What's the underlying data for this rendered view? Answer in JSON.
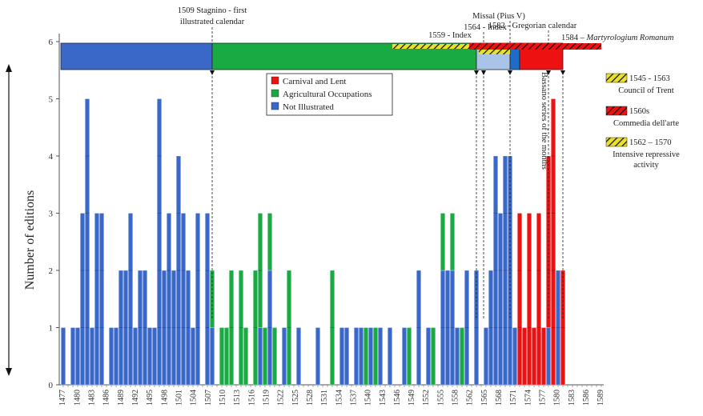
{
  "chart_data": {
    "type": "bar",
    "ylabel": "Number of editions",
    "ylim": [
      0,
      6
    ],
    "yticks": [
      0,
      1,
      2,
      3,
      4,
      5,
      6
    ],
    "x_start": 1477,
    "x_end": 1589,
    "xtick_labels": [
      "1477",
      "1480",
      "1483",
      "1486",
      "1489",
      "1492",
      "1495",
      "1498",
      "1501",
      "1504",
      "1507",
      "1510",
      "1513",
      "1516",
      "1519",
      "1522",
      "1525",
      "1528",
      "1531",
      "1534",
      "1537",
      "1540",
      "1543",
      "1546",
      "1549",
      "1552",
      "1555",
      "1558",
      "1562",
      "1565",
      "1568",
      "1571",
      "1574",
      "1577",
      "1580",
      "1583",
      "1586",
      "1589"
    ],
    "legend": [
      {
        "label": "Carnival and Lent",
        "color": "#ee1111"
      },
      {
        "label": "Agricultural Occupations",
        "color": "#1aaa44"
      },
      {
        "label": "Not Illustrated",
        "color": "#3a68c8"
      }
    ],
    "colors": {
      "red": "#ee1111",
      "green": "#1aaa44",
      "blue": "#3a68c8",
      "lightblue": "#a9c4e8",
      "hatch_yellow": "#e8e02a",
      "hatch_black": "#111111"
    },
    "stacks": [
      {
        "year": 1477,
        "blue": 1
      },
      {
        "year": 1479,
        "blue": 1
      },
      {
        "year": 1480,
        "blue": 1
      },
      {
        "year": 1481,
        "blue": 3
      },
      {
        "year": 1482,
        "blue": 5
      },
      {
        "year": 1483,
        "blue": 1
      },
      {
        "year": 1484,
        "blue": 3
      },
      {
        "year": 1485,
        "blue": 3
      },
      {
        "year": 1487,
        "blue": 1
      },
      {
        "year": 1488,
        "blue": 1
      },
      {
        "year": 1489,
        "blue": 2
      },
      {
        "year": 1490,
        "blue": 2
      },
      {
        "year": 1491,
        "blue": 3
      },
      {
        "year": 1492,
        "blue": 1
      },
      {
        "year": 1493,
        "blue": 2
      },
      {
        "year": 1494,
        "blue": 2
      },
      {
        "year": 1495,
        "blue": 1
      },
      {
        "year": 1496,
        "blue": 1
      },
      {
        "year": 1497,
        "blue": 5
      },
      {
        "year": 1498,
        "blue": 2
      },
      {
        "year": 1499,
        "blue": 3
      },
      {
        "year": 1500,
        "blue": 2
      },
      {
        "year": 1501,
        "blue": 4
      },
      {
        "year": 1502,
        "blue": 3
      },
      {
        "year": 1503,
        "blue": 2
      },
      {
        "year": 1504,
        "blue": 1
      },
      {
        "year": 1505,
        "blue": 3
      },
      {
        "year": 1507,
        "blue": 3
      },
      {
        "year": 1508,
        "blue": 1,
        "green": 1
      },
      {
        "year": 1510,
        "green": 1
      },
      {
        "year": 1511,
        "green": 1
      },
      {
        "year": 1512,
        "green": 2
      },
      {
        "year": 1514,
        "green": 2
      },
      {
        "year": 1515,
        "green": 1
      },
      {
        "year": 1517,
        "green": 2
      },
      {
        "year": 1518,
        "blue": 1,
        "green": 2
      },
      {
        "year": 1519,
        "green": 1
      },
      {
        "year": 1520,
        "blue": 2,
        "green": 1
      },
      {
        "year": 1521,
        "green": 1
      },
      {
        "year": 1523,
        "blue": 1
      },
      {
        "year": 1524,
        "green": 2
      },
      {
        "year": 1526,
        "blue": 1
      },
      {
        "year": 1530,
        "blue": 1
      },
      {
        "year": 1533,
        "green": 2
      },
      {
        "year": 1535,
        "blue": 1
      },
      {
        "year": 1536,
        "blue": 1
      },
      {
        "year": 1538,
        "blue": 1
      },
      {
        "year": 1539,
        "blue": 1
      },
      {
        "year": 1540,
        "green": 1
      },
      {
        "year": 1541,
        "blue": 1
      },
      {
        "year": 1542,
        "green": 1
      },
      {
        "year": 1543,
        "blue": 1
      },
      {
        "year": 1545,
        "blue": 1
      },
      {
        "year": 1548,
        "blue": 1
      },
      {
        "year": 1549,
        "green": 1
      },
      {
        "year": 1551,
        "blue": 2
      },
      {
        "year": 1553,
        "blue": 1
      },
      {
        "year": 1554,
        "green": 1
      },
      {
        "year": 1556,
        "blue": 2,
        "green": 1
      },
      {
        "year": 1557,
        "blue": 2
      },
      {
        "year": 1558,
        "blue": 2,
        "green": 1
      },
      {
        "year": 1559,
        "blue": 1
      },
      {
        "year": 1560,
        "green": 1
      },
      {
        "year": 1561,
        "blue": 2
      },
      {
        "year": 1563,
        "blue": 2
      },
      {
        "year": 1565,
        "blue": 1
      },
      {
        "year": 1566,
        "blue": 2
      },
      {
        "year": 1567,
        "blue": 4
      },
      {
        "year": 1568,
        "blue": 3
      },
      {
        "year": 1569,
        "blue": 4
      },
      {
        "year": 1570,
        "blue": 4
      },
      {
        "year": 1571,
        "blue": 1
      },
      {
        "year": 1572,
        "red": 3
      },
      {
        "year": 1573,
        "red": 1
      },
      {
        "year": 1574,
        "red": 3
      },
      {
        "year": 1575,
        "red": 1
      },
      {
        "year": 1576,
        "red": 3
      },
      {
        "year": 1577,
        "red": 1
      },
      {
        "year": 1578,
        "blue": 1,
        "red": 3
      },
      {
        "year": 1579,
        "red": 5
      },
      {
        "year": 1580,
        "blue": 2
      },
      {
        "year": 1581,
        "red": 2
      }
    ],
    "periods": [
      {
        "start": 1477,
        "end": 1508.5,
        "color": "#3a68c8"
      },
      {
        "start": 1508.5,
        "end": 1563.5,
        "color": "#1aaa44"
      },
      {
        "start": 1563.5,
        "end": 1570.5,
        "color": "#a9c4e8"
      },
      {
        "start": 1570.5,
        "end": 1572.5,
        "color": "#1e6cc8"
      },
      {
        "start": 1572.5,
        "end": 1581.5,
        "color": "#ee1111"
      }
    ],
    "period_markers": [
      {
        "x": 1508.5,
        "text": "1509 Stagnino - first illustrated calendar"
      },
      {
        "x": 1563.5,
        "text": "1559 - Index"
      },
      {
        "x": 1565,
        "text": "1564 - Index"
      },
      {
        "x": 1570.5,
        "text": "Missal (Pius V)"
      },
      {
        "x": 1578.5,
        "text": "1582 - Gregorian calendar"
      },
      {
        "x": 1581.5,
        "text": "1584 – Martyrologium Romanum"
      }
    ],
    "vertical_annotation": "Bassano series of the months",
    "side_legend": [
      {
        "pattern": "yellow-black",
        "text_line1": "1545 - 1563",
        "text_line2": "Council of Trent"
      },
      {
        "pattern": "red-black",
        "text_line1": "1560s",
        "text_line2": "Commedia dell'arte"
      },
      {
        "pattern": "yellow-black",
        "text_line1": "1562 – 1570",
        "text_line2": "Intensive repressive activity"
      }
    ]
  }
}
